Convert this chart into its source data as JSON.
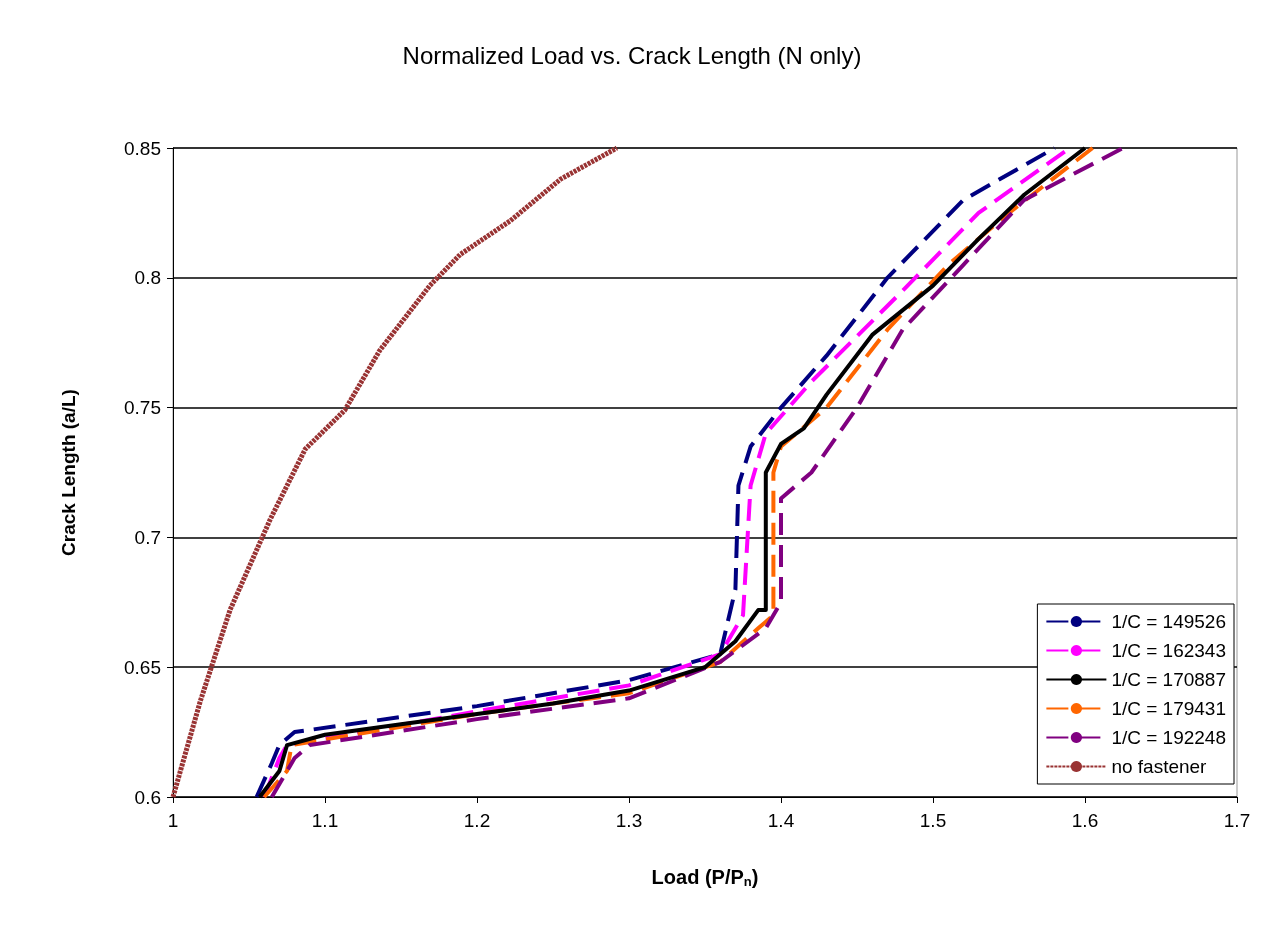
{
  "chart_data": {
    "type": "line",
    "title": "Normalized Load vs. Crack Length (N only)",
    "xlabel": "Load (P/P$_{n}$)",
    "ylabel": "Crack Length (a/L)",
    "xlim": [
      1,
      1.7
    ],
    "xticks": [
      1,
      1.1,
      1.2,
      1.3,
      1.4,
      1.5,
      1.6,
      1.7
    ],
    "ylim": [
      0.6,
      0.85
    ],
    "yticks": [
      0.6,
      0.65,
      0.7,
      0.75,
      0.8,
      0.85
    ],
    "grid": "y",
    "legend": "bottom right",
    "marker": "none",
    "series": [
      {
        "name": "1/C = 149526",
        "color": "#000080",
        "line_style": "dashed",
        "x": [
          1.055,
          1.065,
          1.07,
          1.08,
          1.2,
          1.3,
          1.36,
          1.37,
          1.372,
          1.38,
          1.4,
          1.43,
          1.47,
          1.52,
          1.58
        ],
        "values": [
          0.6,
          0.613,
          0.62,
          0.625,
          0.635,
          0.645,
          0.655,
          0.68,
          0.72,
          0.735,
          0.75,
          0.77,
          0.8,
          0.83,
          0.85
        ]
      },
      {
        "name": "1/C = 162343",
        "color": "#ff00ff",
        "line_style": "dashed",
        "x": [
          1.06,
          1.07,
          1.075,
          1.2,
          1.3,
          1.36,
          1.375,
          1.38,
          1.39,
          1.42,
          1.48,
          1.53,
          1.59
        ],
        "values": [
          0.6,
          0.615,
          0.62,
          0.633,
          0.643,
          0.655,
          0.67,
          0.72,
          0.74,
          0.76,
          0.795,
          0.825,
          0.85
        ]
      },
      {
        "name": "1/C = 170887",
        "color": "#000000",
        "line_style": "solid",
        "x": [
          1.057,
          1.07,
          1.075,
          1.1,
          1.15,
          1.2,
          1.25,
          1.3,
          1.35,
          1.37,
          1.385,
          1.39,
          1.39,
          1.4,
          1.415,
          1.43,
          1.46,
          1.5,
          1.53,
          1.56,
          1.6
        ],
        "values": [
          0.6,
          0.61,
          0.62,
          0.624,
          0.628,
          0.632,
          0.636,
          0.641,
          0.65,
          0.66,
          0.672,
          0.672,
          0.725,
          0.736,
          0.742,
          0.755,
          0.778,
          0.797,
          0.815,
          0.832,
          0.85
        ]
      },
      {
        "name": "1/C = 179431",
        "color": "#ff6600",
        "line_style": "dashed",
        "x": [
          1.06,
          1.075,
          1.078,
          1.2,
          1.3,
          1.36,
          1.385,
          1.395,
          1.395,
          1.4,
          1.43,
          1.47,
          1.51,
          1.55,
          1.605
        ],
        "values": [
          0.6,
          0.61,
          0.62,
          0.632,
          0.64,
          0.652,
          0.665,
          0.67,
          0.725,
          0.735,
          0.75,
          0.78,
          0.805,
          0.825,
          0.85
        ]
      },
      {
        "name": "1/C = 192248",
        "color": "#800080",
        "line_style": "dashed",
        "x": [
          1.065,
          1.08,
          1.09,
          1.2,
          1.3,
          1.36,
          1.39,
          1.4,
          1.4,
          1.42,
          1.45,
          1.48,
          1.52,
          1.56,
          1.625
        ],
        "values": [
          0.6,
          0.615,
          0.62,
          0.63,
          0.638,
          0.652,
          0.665,
          0.675,
          0.715,
          0.725,
          0.75,
          0.78,
          0.805,
          0.83,
          0.85
        ]
      },
      {
        "name": "no fastener",
        "color": "#993333",
        "line_style": "dotted",
        "x": [
          1.0,
          1.018,
          1.0375,
          1.064,
          1.087,
          1.113,
          1.136,
          1.169,
          1.189,
          1.222,
          1.255,
          1.292
        ],
        "values": [
          0.6,
          0.637,
          0.672,
          0.707,
          0.734,
          0.749,
          0.772,
          0.797,
          0.809,
          0.822,
          0.838,
          0.85
        ]
      }
    ]
  }
}
